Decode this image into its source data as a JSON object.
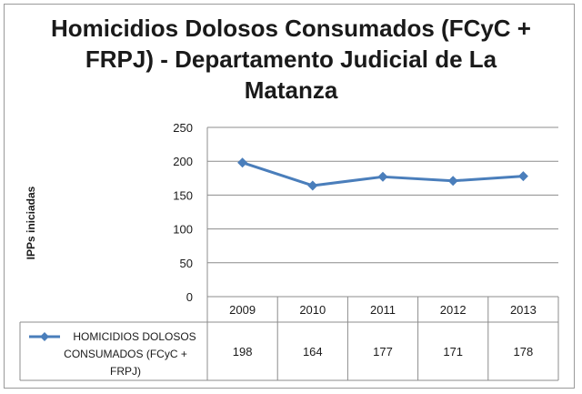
{
  "chart_data": {
    "type": "line",
    "title": "Homicidios Dolosos Consumados (FCyC + FRPJ) - Departamento Judicial de La Matanza",
    "ylabel": "IPPs iniciadas",
    "xlabel": "",
    "categories": [
      "2009",
      "2010",
      "2011",
      "2012",
      "2013"
    ],
    "ylim": [
      0,
      250
    ],
    "yticks": [
      0,
      50,
      100,
      150,
      200,
      250
    ],
    "grid": true,
    "legend": "data-table-left",
    "series": [
      {
        "name": "HOMICIDIOS DOLOSOS CONSUMADOS (FCyC + FRPJ)",
        "name_lines": [
          "HOMICIDIOS DOLOSOS",
          "CONSUMADOS (FCyC +",
          "FRPJ)"
        ],
        "values": [
          198,
          164,
          177,
          171,
          178
        ],
        "color": "#4a7ebb"
      }
    ],
    "data_table": true
  }
}
